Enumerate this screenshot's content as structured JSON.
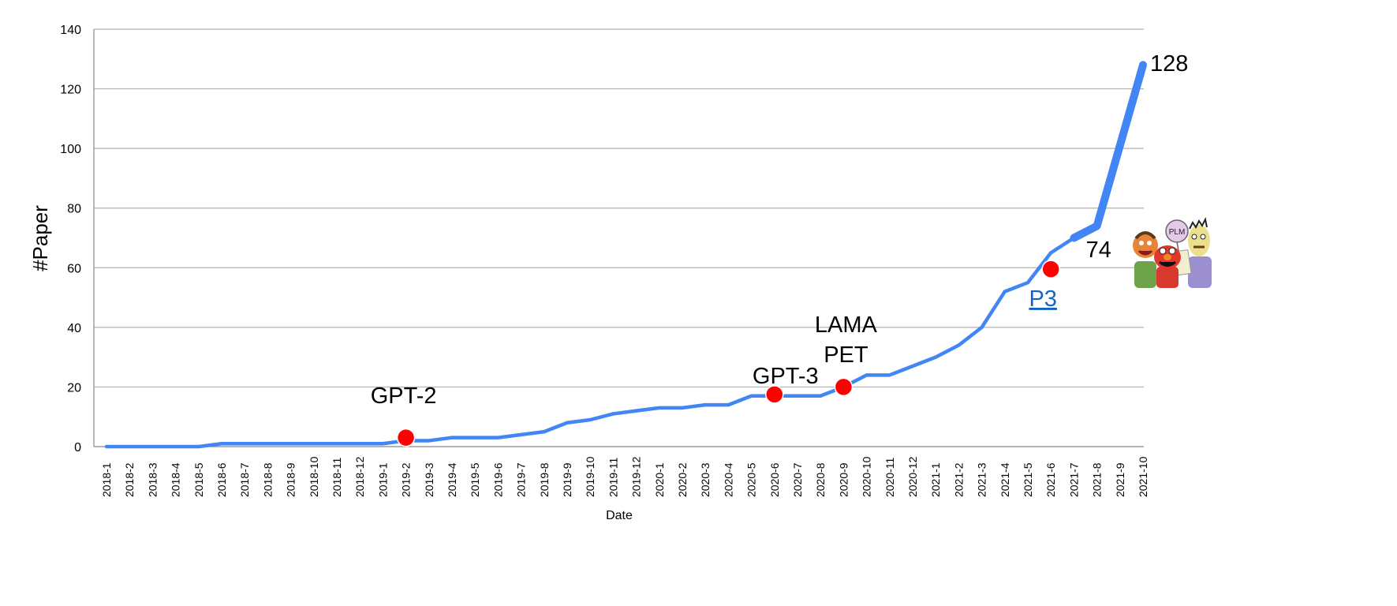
{
  "chart_data": {
    "type": "line",
    "xlabel": "Date",
    "ylabel": "#Paper",
    "ylim": [
      0,
      140
    ],
    "yticks": [
      0,
      20,
      40,
      60,
      80,
      100,
      120,
      140
    ],
    "grid": "horizontal",
    "colors": {
      "line": "#4285f4",
      "marker": "#ff0000",
      "grid": "#b0b0b0",
      "link": "#1565c0"
    },
    "categories": [
      "2018-1",
      "2018-2",
      "2018-3",
      "2018-4",
      "2018-5",
      "2018-6",
      "2018-7",
      "2018-8",
      "2018-9",
      "2018-10",
      "2018-11",
      "2018-12",
      "2019-1",
      "2019-2",
      "2019-3",
      "2019-4",
      "2019-5",
      "2019-6",
      "2019-7",
      "2019-8",
      "2019-9",
      "2019-10",
      "2019-11",
      "2019-12",
      "2020-1",
      "2020-2",
      "2020-3",
      "2020-4",
      "2020-5",
      "2020-6",
      "2020-7",
      "2020-8",
      "2020-9",
      "2020-10",
      "2020-11",
      "2020-12",
      "2021-1",
      "2021-2",
      "2021-3",
      "2021-4",
      "2021-5",
      "2021-6",
      "2021-7",
      "2021-8",
      "2021-9",
      "2021-10"
    ],
    "series": [
      {
        "values": [
          0,
          0,
          0,
          0,
          0,
          1,
          1,
          1,
          1,
          1,
          1,
          1,
          1,
          2,
          2,
          3,
          3,
          3,
          4,
          5,
          8,
          9,
          11,
          12,
          13,
          13,
          14,
          14,
          17,
          17,
          17,
          17,
          20,
          24,
          24,
          27,
          30,
          34,
          40,
          52,
          55,
          65,
          70,
          74,
          101,
          128
        ]
      }
    ],
    "markers": [
      {
        "x": "2019-2",
        "y": 3
      },
      {
        "x": "2020-6",
        "y": 17.5
      },
      {
        "x": "2020-9",
        "y": 20
      },
      {
        "x": "2021-6",
        "y": 59.5
      }
    ],
    "annotations": [
      {
        "text": "GPT-2",
        "x": "2019-2"
      },
      {
        "text": "GPT-3",
        "x": "2020-6"
      },
      {
        "text": "LAMA",
        "x": "2020-9"
      },
      {
        "text": "PET",
        "x": "2020-9"
      },
      {
        "text": "P3",
        "x": "2021-6"
      },
      {
        "text": "PLM",
        "x": "2021-6"
      },
      {
        "text": "74",
        "x": "2021-8"
      },
      {
        "text": "128",
        "x": "2021-10"
      }
    ]
  }
}
